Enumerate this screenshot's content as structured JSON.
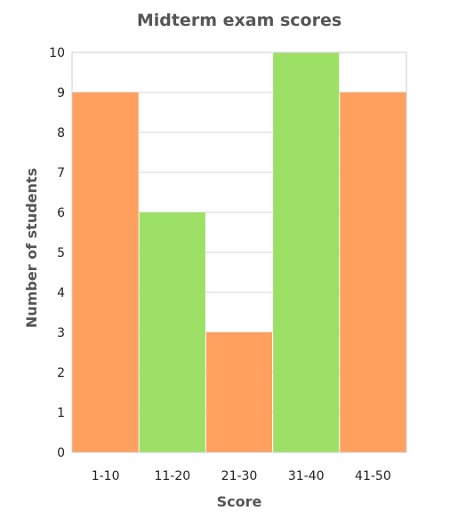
{
  "chart_data": {
    "type": "bar",
    "title": "Midterm exam scores",
    "xlabel": "Score",
    "ylabel": "Number of students",
    "categories": [
      "1-10",
      "11-20",
      "21-30",
      "31-40",
      "41-50"
    ],
    "values": [
      9,
      6,
      3,
      10,
      9
    ],
    "ylim": [
      0,
      10
    ],
    "yticks": [
      "0",
      "1",
      "2",
      "3",
      "4",
      "5",
      "6",
      "7",
      "8",
      "9",
      "10"
    ],
    "grid": true,
    "legend": "none",
    "bar_colors": [
      "#ffa05f",
      "#9de066",
      "#ffa05f",
      "#9de066",
      "#ffa05f"
    ],
    "gridline_color": "#d4d4d4",
    "frame_color": "#cccccc"
  }
}
